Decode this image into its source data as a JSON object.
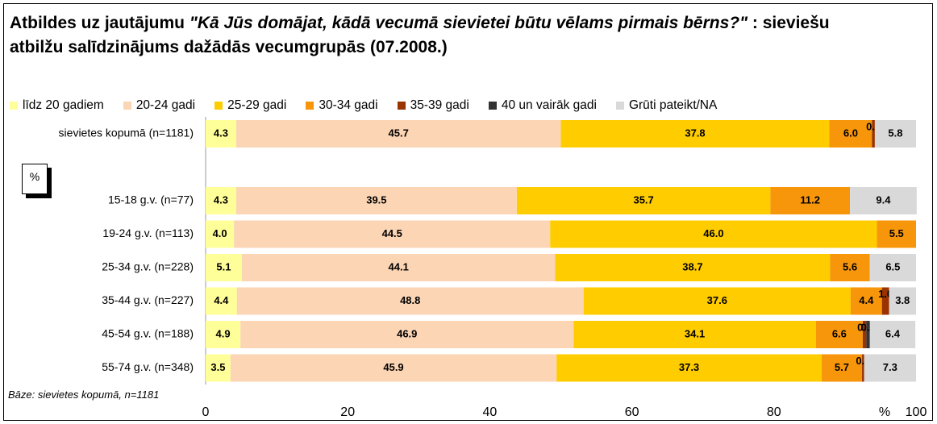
{
  "chart_data": {
    "type": "stacked_bar_horizontal",
    "title_parts": [
      "Atbildes uz jautājumu ",
      "\"Kā Jūs domājat, kādā vecumā sievietei būtu vēlams pirmais bērns?\"",
      " : sieviešu atbilžu salīdzinājums dažādās vecumgrupās (07.2008.)"
    ],
    "categories": [
      "sievietes kopumā (n=1181)",
      "15-18 g.v. (n=77)",
      "19-24 g.v. (n=113)",
      "25-34 g.v. (n=228)",
      "35-44 g.v. (n=227)",
      "45-54 g.v. (n=188)",
      "55-74 g.v. (n=348)"
    ],
    "series": [
      {
        "name": "līdz 20 gadiem",
        "color": "#ffff99",
        "values": [
          4.3,
          4.3,
          4.0,
          5.1,
          4.4,
          4.9,
          3.5
        ],
        "value_labels": [
          "4.3",
          "4.3",
          "4.0",
          "5.1",
          "4.4",
          "4.9",
          "3.5"
        ]
      },
      {
        "name": "20-24 gadi",
        "color": "#fcd5b5",
        "values": [
          45.7,
          39.5,
          44.5,
          44.1,
          48.8,
          46.9,
          45.9
        ],
        "value_labels": [
          "45.7",
          "39.5",
          "44.5",
          "44.1",
          "48.8",
          "46.9",
          "45.9"
        ]
      },
      {
        "name": "25-29 gadi",
        "color": "#ffcc00",
        "values": [
          37.8,
          35.7,
          46.0,
          38.7,
          37.6,
          34.1,
          37.3
        ],
        "value_labels": [
          "37.8",
          "35.7",
          "46.0",
          "38.7",
          "37.6",
          "34.1",
          "37.3"
        ]
      },
      {
        "name": "30-34 gadi",
        "color": "#f7960a",
        "values": [
          6.0,
          11.2,
          5.5,
          5.6,
          4.4,
          6.6,
          5.7
        ],
        "value_labels": [
          "6.0",
          "11.2",
          "5.5",
          "5.6",
          "4.4",
          "6.6",
          "5.7"
        ]
      },
      {
        "name": "35-39 gadi",
        "color": "#993300",
        "values": [
          0.4,
          null,
          null,
          null,
          1.0,
          0.5,
          0.3
        ],
        "value_labels": [
          "0.4",
          null,
          null,
          null,
          "1.0",
          "0.5",
          "0.3"
        ]
      },
      {
        "name": "40 un vairāk gadi",
        "color": "#333333",
        "values": [
          null,
          null,
          null,
          null,
          null,
          0.5,
          null
        ],
        "value_labels": [
          null,
          null,
          null,
          null,
          null,
          "0.5",
          null
        ]
      },
      {
        "name": "Grūti pateikt/NA",
        "color": "#d9d9d9",
        "values": [
          5.8,
          9.4,
          null,
          6.5,
          3.8,
          6.4,
          7.3
        ],
        "value_labels": [
          "5.8",
          "9.4",
          null,
          "6.5",
          "3.8",
          "6.4",
          "7.3"
        ]
      }
    ],
    "xlim": [
      0,
      100
    ],
    "xticks": [
      0,
      20,
      40,
      60,
      80,
      100
    ],
    "x_axis_label": "%",
    "side_label": "%",
    "note": "Bāze: sievietes kopumā, n=1181"
  }
}
